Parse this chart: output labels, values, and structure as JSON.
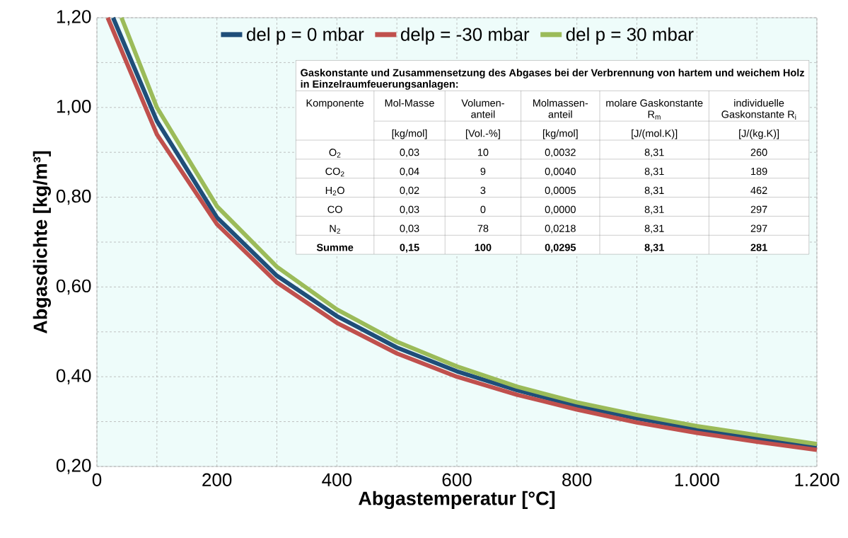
{
  "chart_data": {
    "type": "line",
    "xlabel": "Abgastemperatur [°C]",
    "ylabel": "Abgasdichte [kg/m³]",
    "xlim": [
      0,
      1200
    ],
    "ylim": [
      0.2,
      1.2
    ],
    "xticks": [
      0,
      200,
      400,
      600,
      800,
      {
        "value": 1000,
        "label": "1.000"
      },
      {
        "value": 1200,
        "label": "1.200"
      }
    ],
    "yticks": [
      {
        "value": 0.2,
        "label": "0,20"
      },
      {
        "value": 0.4,
        "label": "0,40"
      },
      {
        "value": 0.6,
        "label": "0,60"
      },
      {
        "value": 0.8,
        "label": "0,80"
      },
      {
        "value": 1.0,
        "label": "1,00"
      },
      {
        "value": 1.2,
        "label": "1,20"
      }
    ],
    "grid": true,
    "legend": "top",
    "series": [
      {
        "name": "del p = 0 mbar",
        "color": "#1f4e79",
        "x": [
          27,
          100,
          200,
          300,
          400,
          500,
          600,
          700,
          800,
          900,
          1000,
          1100,
          1200
        ],
        "values": [
          1.2,
          0.97,
          0.755,
          0.625,
          0.535,
          0.465,
          0.412,
          0.37,
          0.335,
          0.307,
          0.283,
          0.262,
          0.244
        ]
      },
      {
        "name": "delp = -30 mbar",
        "color": "#c0504d",
        "x": [
          18,
          100,
          200,
          300,
          400,
          500,
          600,
          700,
          800,
          900,
          1000,
          1100,
          1200
        ],
        "values": [
          1.2,
          0.94,
          0.74,
          0.61,
          0.52,
          0.452,
          0.4,
          0.36,
          0.327,
          0.298,
          0.275,
          0.255,
          0.237
        ]
      },
      {
        "name": "del p = 30 mbar",
        "color": "#9bbb59",
        "x": [
          41,
          100,
          200,
          300,
          400,
          500,
          600,
          700,
          800,
          900,
          1000,
          1100,
          1200
        ],
        "values": [
          1.2,
          1.0,
          0.78,
          0.645,
          0.55,
          0.478,
          0.423,
          0.378,
          0.343,
          0.315,
          0.29,
          0.27,
          0.25
        ]
      }
    ],
    "annotations": [
      "Gaskonstante und Zusammensetzung des Abgases bei der Verbrennung von hartem und weichem Holz in Einzelraumfeuerungsanlagen:",
      "Komponente",
      "Mol-Masse",
      "Volumen-anteil",
      "Molmassen-anteil",
      "molare Gaskonstante R$_{m}$",
      "individuelle Gaskonstante R$_{i}$",
      "[kg/mol]",
      "[Vol.-%]",
      "[kg/mol]",
      "[J/(mol.K)]",
      "[J/(kg.K)]",
      "O$_{2}$",
      "0,03",
      "10",
      "0,0032",
      "8,31",
      "260",
      "CO$_{2}$",
      "0,04",
      "9",
      "0,0040",
      "8,31",
      "189",
      "H$_{2}$O",
      "0,02",
      "3",
      "0,0005",
      "8,31",
      "462",
      "CO",
      "0,03",
      "0",
      "0,0000",
      "8,31",
      "297",
      "N$_{2}$",
      "0,03",
      "78",
      "0,0218",
      "8,31",
      "297",
      "Summe",
      "0,15",
      "100",
      "0,0295",
      "8,31",
      "281"
    ]
  }
}
